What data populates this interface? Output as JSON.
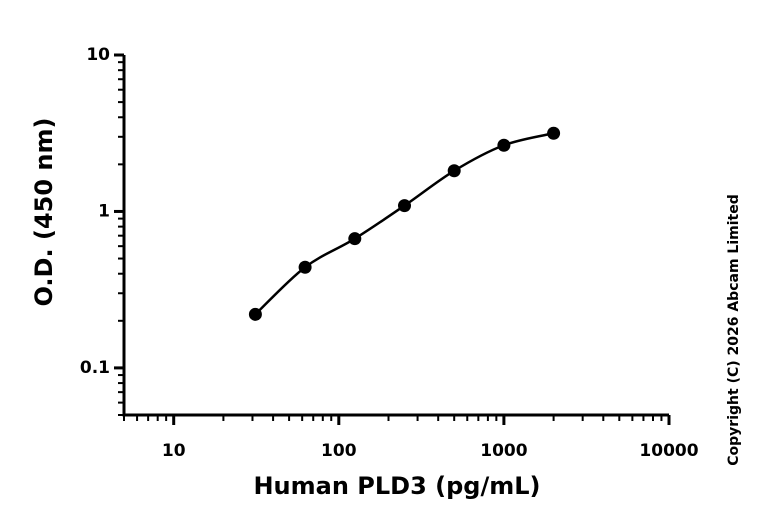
{
  "chart_data": {
    "type": "scatter",
    "x_label": "Human PLD3 (pg/mL)",
    "y_label": "O.D. (450 nm)",
    "annotation": "Copyright (C) 2026 Abcam Limited",
    "x": [
      31.25,
      62.5,
      125,
      250,
      500,
      1000,
      2000
    ],
    "series": [
      {
        "color": "#000000",
        "values": [
          0.22,
          0.44,
          0.67,
          1.09,
          1.82,
          2.65,
          3.16
        ]
      }
    ],
    "xlim": [
      5,
      10000
    ],
    "ylim": [
      0.05,
      10
    ],
    "xticks": [
      10,
      100,
      1000,
      10000
    ],
    "yticks": [
      0.1,
      1,
      10
    ],
    "xscale": "log",
    "yscale": "log",
    "fit_curve": true
  }
}
